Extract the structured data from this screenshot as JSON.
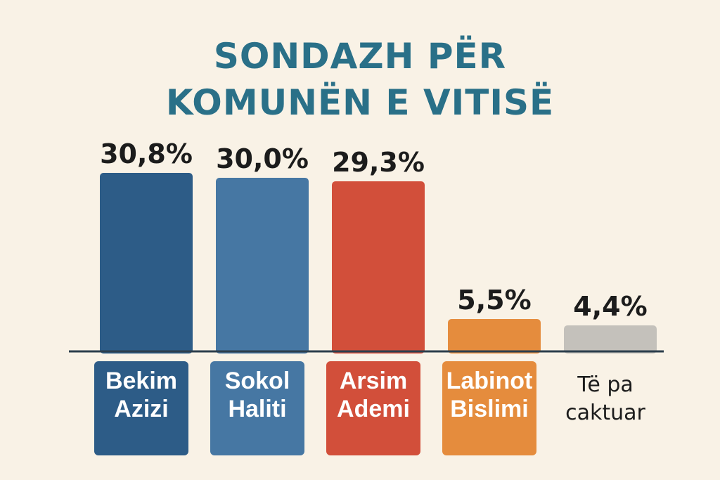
{
  "chart_data": {
    "type": "bar",
    "title_lines": [
      "SONDAZH PËR",
      "KOMUNËN E VITISË"
    ],
    "categories": [
      [
        "Bekim",
        "Azizi"
      ],
      [
        "Sokol",
        "Haliti"
      ],
      [
        "Arsim",
        "Ademi"
      ],
      [
        "Labinot",
        "Bislimi"
      ],
      [
        "Të pa",
        "caktuar"
      ]
    ],
    "values": [
      30.8,
      30.0,
      29.3,
      5.5,
      4.4
    ],
    "value_labels": [
      "30,8%",
      "30,0%",
      "29,3%",
      "5,5%",
      "4,4%"
    ],
    "colors": [
      "#2d5c87",
      "#4677a3",
      "#d24f3a",
      "#e58c3d",
      "#c4c1bb"
    ],
    "label_box_colors": [
      "#2d5c87",
      "#4677a3",
      "#d24f3a",
      "#e58c3d",
      null
    ],
    "xlabel": "",
    "ylabel": "",
    "ylim": [
      0,
      30.8
    ],
    "grid": false,
    "legend": "none"
  },
  "colors": {
    "background": "#f9f2e6",
    "title": "#2a7088",
    "baseline": "#2c3e4c"
  }
}
